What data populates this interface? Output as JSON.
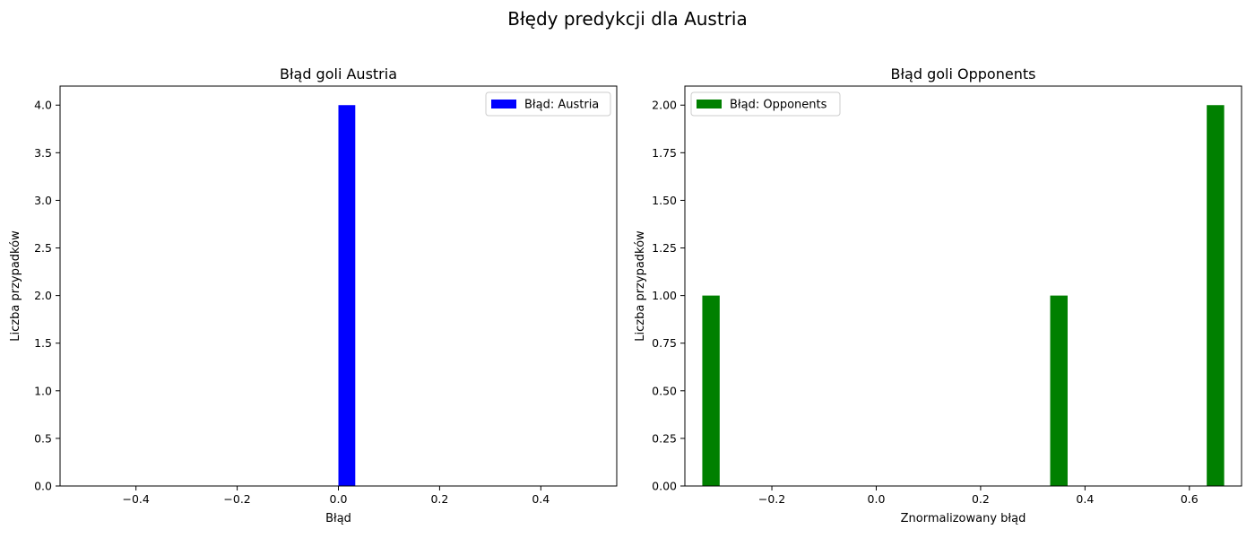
{
  "figure_title": "Błędy predykcji dla Austria",
  "chart_data": [
    {
      "type": "bar",
      "title": "Błąd goli Austria",
      "xlabel": "Błąd",
      "ylabel": "Liczba przypadków",
      "xlim": [
        -0.55,
        0.55
      ],
      "ylim": [
        0,
        4.2
      ],
      "x_ticks": [
        -0.4,
        -0.2,
        0.0,
        0.2,
        0.4
      ],
      "x_tick_labels": [
        "−0.4",
        "−0.2",
        "0.0",
        "0.2",
        "0.4"
      ],
      "y_ticks": [
        0,
        0.5,
        1,
        1.5,
        2,
        2.5,
        3,
        3.5,
        4
      ],
      "y_tick_labels": [
        "0.0",
        "0.5",
        "1.0",
        "1.5",
        "2.0",
        "2.5",
        "3.0",
        "3.5",
        "4.0"
      ],
      "series": [
        {
          "name": "Błąd: Austria",
          "color": "#0000ff",
          "bins": [
            {
              "x0": 0.0,
              "x1": 0.0333,
              "count": 4
            }
          ]
        }
      ],
      "legend_position": "top-right",
      "grid": false
    },
    {
      "type": "bar",
      "title": "Błąd goli Opponents",
      "xlabel": "Znormalizowany błąd",
      "ylabel": "Liczba przypadków",
      "xlim": [
        -0.3667,
        0.7
      ],
      "ylim": [
        0,
        2.1
      ],
      "x_ticks": [
        -0.2,
        0.0,
        0.2,
        0.4,
        0.6
      ],
      "x_tick_labels": [
        "−0.2",
        "0.0",
        "0.2",
        "0.4",
        "0.6"
      ],
      "y_ticks": [
        0,
        0.25,
        0.5,
        0.75,
        1,
        1.25,
        1.5,
        1.75,
        2
      ],
      "y_tick_labels": [
        "0.00",
        "0.25",
        "0.50",
        "0.75",
        "1.00",
        "1.25",
        "1.50",
        "1.75",
        "2.00"
      ],
      "series": [
        {
          "name": "Błąd: Opponents",
          "color": "#008000",
          "bins": [
            {
              "x0": -0.3333,
              "x1": -0.3,
              "count": 1
            },
            {
              "x0": 0.3333,
              "x1": 0.3667,
              "count": 1
            },
            {
              "x0": 0.6333,
              "x1": 0.6667,
              "count": 2
            }
          ]
        }
      ],
      "legend_position": "top-left",
      "grid": false
    }
  ]
}
